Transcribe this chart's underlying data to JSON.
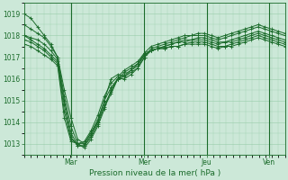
{
  "xlabel": "Pression niveau de la mer( hPa )",
  "bg_color": "#cce8d8",
  "grid_color": "#99ccaa",
  "line_color": "#1a6b2a",
  "ylim": [
    1012.5,
    1019.5
  ],
  "yticks": [
    1013,
    1014,
    1015,
    1016,
    1017,
    1018,
    1019
  ],
  "day_labels": [
    "Mar",
    "Mer",
    "Jeu",
    "Ven"
  ],
  "day_positions": [
    0.18,
    0.46,
    0.7,
    0.94
  ],
  "xlim": [
    0.0,
    1.0
  ],
  "series": [
    [
      1019.0,
      1018.8,
      1018.4,
      1018.0,
      1017.6,
      1017.0,
      1015.5,
      1014.2,
      1013.2,
      1013.0,
      1013.5,
      1014.0,
      1015.0,
      1016.0,
      1016.2,
      1016.1,
      1016.4,
      1016.7,
      1017.2,
      1017.5,
      1017.6,
      1017.7,
      1017.8,
      1017.9,
      1018.0,
      1018.0,
      1018.1,
      1018.1,
      1018.0,
      1017.9,
      1018.0,
      1018.1,
      1018.2,
      1018.3,
      1018.4,
      1018.5,
      1018.4,
      1018.3,
      1018.2,
      1018.1
    ],
    [
      1018.5,
      1018.3,
      1018.1,
      1017.9,
      1017.5,
      1017.0,
      1015.2,
      1013.8,
      1013.0,
      1012.8,
      1013.2,
      1013.8,
      1014.6,
      1015.5,
      1016.0,
      1016.0,
      1016.2,
      1016.5,
      1017.0,
      1017.4,
      1017.5,
      1017.6,
      1017.7,
      1017.8,
      1017.9,
      1018.0,
      1018.0,
      1018.0,
      1017.9,
      1017.8,
      1017.9,
      1018.0,
      1018.1,
      1018.2,
      1018.3,
      1018.4,
      1018.3,
      1018.2,
      1018.1,
      1018.0
    ],
    [
      1018.0,
      1017.9,
      1017.8,
      1017.6,
      1017.3,
      1016.9,
      1015.0,
      1013.5,
      1012.9,
      1012.9,
      1013.3,
      1013.9,
      1014.7,
      1015.3,
      1016.0,
      1016.1,
      1016.3,
      1016.5,
      1017.0,
      1017.3,
      1017.4,
      1017.5,
      1017.6,
      1017.7,
      1017.8,
      1017.8,
      1017.9,
      1017.9,
      1017.8,
      1017.7,
      1017.7,
      1017.8,
      1017.9,
      1018.0,
      1018.1,
      1018.2,
      1018.1,
      1018.0,
      1017.9,
      1017.8
    ],
    [
      1018.0,
      1017.8,
      1017.6,
      1017.4,
      1017.1,
      1016.8,
      1014.8,
      1013.3,
      1012.9,
      1012.9,
      1013.4,
      1014.0,
      1014.8,
      1015.4,
      1016.0,
      1016.2,
      1016.4,
      1016.6,
      1017.1,
      1017.3,
      1017.4,
      1017.5,
      1017.6,
      1017.7,
      1017.7,
      1017.8,
      1017.8,
      1017.8,
      1017.7,
      1017.6,
      1017.7,
      1017.7,
      1017.8,
      1017.9,
      1018.0,
      1018.1,
      1018.0,
      1017.9,
      1017.8,
      1017.7
    ],
    [
      1017.8,
      1017.7,
      1017.5,
      1017.3,
      1017.0,
      1016.7,
      1014.5,
      1013.2,
      1013.0,
      1013.0,
      1013.5,
      1014.1,
      1015.0,
      1015.6,
      1016.0,
      1016.3,
      1016.5,
      1016.7,
      1017.1,
      1017.3,
      1017.4,
      1017.4,
      1017.5,
      1017.5,
      1017.6,
      1017.7,
      1017.7,
      1017.7,
      1017.6,
      1017.5,
      1017.5,
      1017.6,
      1017.7,
      1017.8,
      1017.9,
      1018.0,
      1017.9,
      1017.8,
      1017.7,
      1017.6
    ],
    [
      1017.6,
      1017.5,
      1017.3,
      1017.1,
      1016.9,
      1016.6,
      1014.2,
      1013.1,
      1013.0,
      1013.1,
      1013.6,
      1014.3,
      1015.2,
      1015.8,
      1016.1,
      1016.4,
      1016.6,
      1016.8,
      1017.2,
      1017.3,
      1017.4,
      1017.4,
      1017.5,
      1017.5,
      1017.6,
      1017.6,
      1017.6,
      1017.6,
      1017.5,
      1017.4,
      1017.5,
      1017.5,
      1017.6,
      1017.7,
      1017.8,
      1017.9,
      1017.8,
      1017.7,
      1017.6,
      1017.5
    ]
  ]
}
